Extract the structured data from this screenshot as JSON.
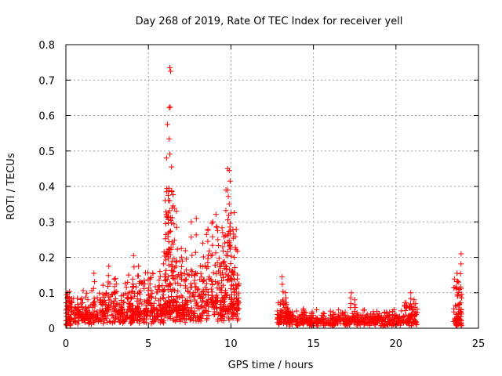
{
  "chart_data": {
    "type": "scatter",
    "title": "Day 268 of 2019, Rate Of TEC Index for receiver yell",
    "xlabel": "GPS time / hours",
    "ylabel": "ROTI / TECUs",
    "xlim": [
      0,
      25
    ],
    "ylim": [
      0,
      0.8
    ],
    "xticks": [
      0,
      5,
      10,
      15,
      20,
      25
    ],
    "xtick_labels": [
      "0",
      "5",
      "10",
      "15",
      "20",
      "25"
    ],
    "yticks": [
      0,
      0.1,
      0.2,
      0.3,
      0.4,
      0.5,
      0.6,
      0.7,
      0.8
    ],
    "ytick_labels": [
      "0",
      "0.1",
      "0.2",
      "0.3",
      "0.4",
      "0.5",
      "0.6",
      "0.7",
      "0.8"
    ],
    "grid": true,
    "marker": "+",
    "color": "#ff0000",
    "series": [
      {
        "name": "ROTI",
        "segments": [
          {
            "x_start": 0.0,
            "x_end": 0.3,
            "base": 0.02,
            "spread": 0.09,
            "n": 40
          },
          {
            "x_start": 0.3,
            "x_end": 2.0,
            "base": 0.03,
            "spread": 0.07,
            "n": 140
          },
          {
            "x_start": 2.0,
            "x_end": 4.0,
            "base": 0.04,
            "spread": 0.09,
            "n": 170
          },
          {
            "x_start": 4.0,
            "x_end": 6.0,
            "base": 0.04,
            "spread": 0.12,
            "n": 200
          },
          {
            "x_start": 6.0,
            "x_end": 6.6,
            "base": 0.06,
            "spread": 0.32,
            "n": 90
          },
          {
            "x_start": 6.6,
            "x_end": 8.5,
            "base": 0.05,
            "spread": 0.16,
            "n": 180
          },
          {
            "x_start": 8.5,
            "x_end": 10.5,
            "base": 0.06,
            "spread": 0.25,
            "n": 240
          },
          {
            "x_start": 12.8,
            "x_end": 13.5,
            "base": 0.03,
            "spread": 0.05,
            "n": 60
          },
          {
            "x_start": 13.5,
            "x_end": 17.0,
            "base": 0.02,
            "spread": 0.03,
            "n": 220
          },
          {
            "x_start": 17.0,
            "x_end": 20.5,
            "base": 0.02,
            "spread": 0.03,
            "n": 220
          },
          {
            "x_start": 20.5,
            "x_end": 21.3,
            "base": 0.02,
            "spread": 0.06,
            "n": 60
          },
          {
            "x_start": 23.5,
            "x_end": 24.0,
            "base": 0.02,
            "spread": 0.12,
            "n": 60
          }
        ],
        "peaks": [
          [
            0.1,
            0.1
          ],
          [
            1.7,
            0.155
          ],
          [
            2.6,
            0.175
          ],
          [
            3.0,
            0.14
          ],
          [
            3.8,
            0.15
          ],
          [
            4.1,
            0.205
          ],
          [
            4.4,
            0.175
          ],
          [
            5.1,
            0.125
          ],
          [
            5.7,
            0.16
          ],
          [
            5.95,
            0.215
          ],
          [
            6.05,
            0.295
          ],
          [
            6.1,
            0.385
          ],
          [
            6.15,
            0.575
          ],
          [
            6.2,
            0.375
          ],
          [
            6.25,
            0.395
          ],
          [
            6.3,
            0.735
          ],
          [
            6.35,
            0.725
          ],
          [
            6.4,
            0.455
          ],
          [
            6.5,
            0.345
          ],
          [
            6.7,
            0.33
          ],
          [
            7.0,
            0.225
          ],
          [
            7.3,
            0.195
          ],
          [
            7.6,
            0.3
          ],
          [
            7.9,
            0.31
          ],
          [
            8.3,
            0.24
          ],
          [
            8.6,
            0.245
          ],
          [
            8.9,
            0.3
          ],
          [
            9.2,
            0.275
          ],
          [
            9.5,
            0.27
          ],
          [
            9.7,
            0.39
          ],
          [
            9.8,
            0.45
          ],
          [
            9.9,
            0.445
          ],
          [
            9.95,
            0.415
          ],
          [
            10.0,
            0.325
          ],
          [
            10.2,
            0.2
          ],
          [
            13.1,
            0.145
          ],
          [
            13.3,
            0.1
          ],
          [
            14.4,
            0.055
          ],
          [
            16.2,
            0.045
          ],
          [
            17.3,
            0.1
          ],
          [
            17.5,
            0.08
          ],
          [
            20.9,
            0.1
          ],
          [
            21.1,
            0.08
          ],
          [
            23.7,
            0.155
          ],
          [
            23.8,
            0.13
          ],
          [
            23.95,
            0.21
          ]
        ]
      }
    ]
  }
}
